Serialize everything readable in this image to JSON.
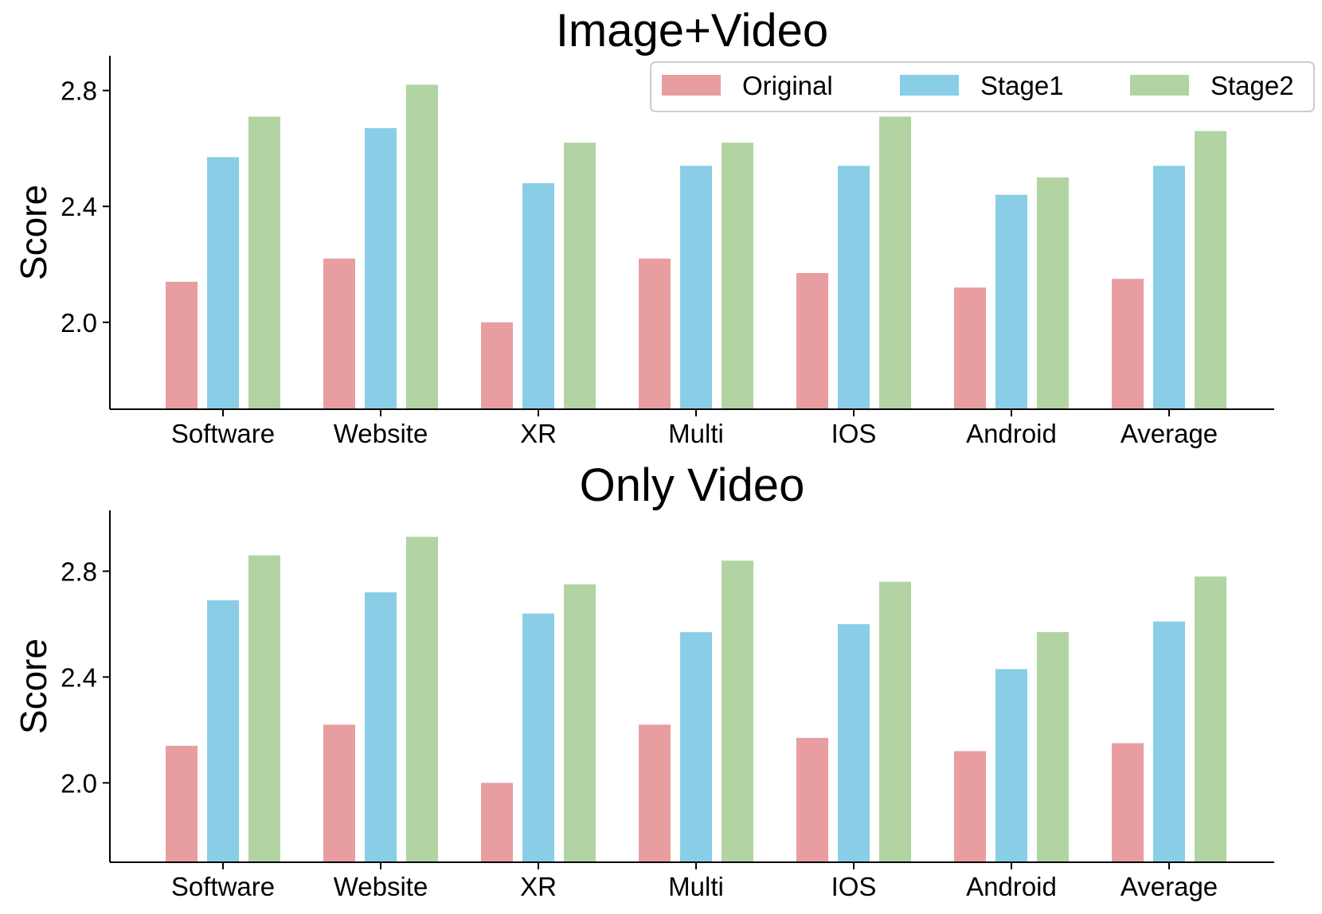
{
  "colors": {
    "Original": "#e89da0",
    "Stage1": "#89cde6",
    "Stage2": "#b2d4a3"
  },
  "legend": [
    "Original",
    "Stage1",
    "Stage2"
  ],
  "chart_data": [
    {
      "type": "bar",
      "title": "Image+Video",
      "xlabel": "",
      "ylabel": "Score",
      "categories": [
        "Software",
        "Website",
        "XR",
        "Multi",
        "IOS",
        "Android",
        "Average"
      ],
      "series": [
        {
          "name": "Original",
          "values": [
            2.14,
            2.22,
            2.0,
            2.22,
            2.17,
            2.12,
            2.15
          ]
        },
        {
          "name": "Stage1",
          "values": [
            2.57,
            2.67,
            2.48,
            2.54,
            2.54,
            2.44,
            2.54
          ]
        },
        {
          "name": "Stage2",
          "values": [
            2.71,
            2.82,
            2.62,
            2.62,
            2.71,
            2.5,
            2.66
          ]
        }
      ],
      "ylim": [
        1.7,
        2.92
      ],
      "yticks": [
        "2.0",
        "2.4",
        "2.8"
      ],
      "legend": "top-right",
      "grid": false
    },
    {
      "type": "bar",
      "title": "Only Video",
      "xlabel": "",
      "ylabel": "Score",
      "categories": [
        "Software",
        "Website",
        "XR",
        "Multi",
        "IOS",
        "Android",
        "Average"
      ],
      "series": [
        {
          "name": "Original",
          "values": [
            2.14,
            2.22,
            2.0,
            2.22,
            2.17,
            2.12,
            2.15
          ]
        },
        {
          "name": "Stage1",
          "values": [
            2.69,
            2.72,
            2.64,
            2.57,
            2.6,
            2.43,
            2.61
          ]
        },
        {
          "name": "Stage2",
          "values": [
            2.86,
            2.93,
            2.75,
            2.84,
            2.76,
            2.57,
            2.78
          ]
        }
      ],
      "ylim": [
        1.7,
        3.03
      ],
      "yticks": [
        "2.0",
        "2.4",
        "2.8"
      ],
      "grid": false
    }
  ]
}
